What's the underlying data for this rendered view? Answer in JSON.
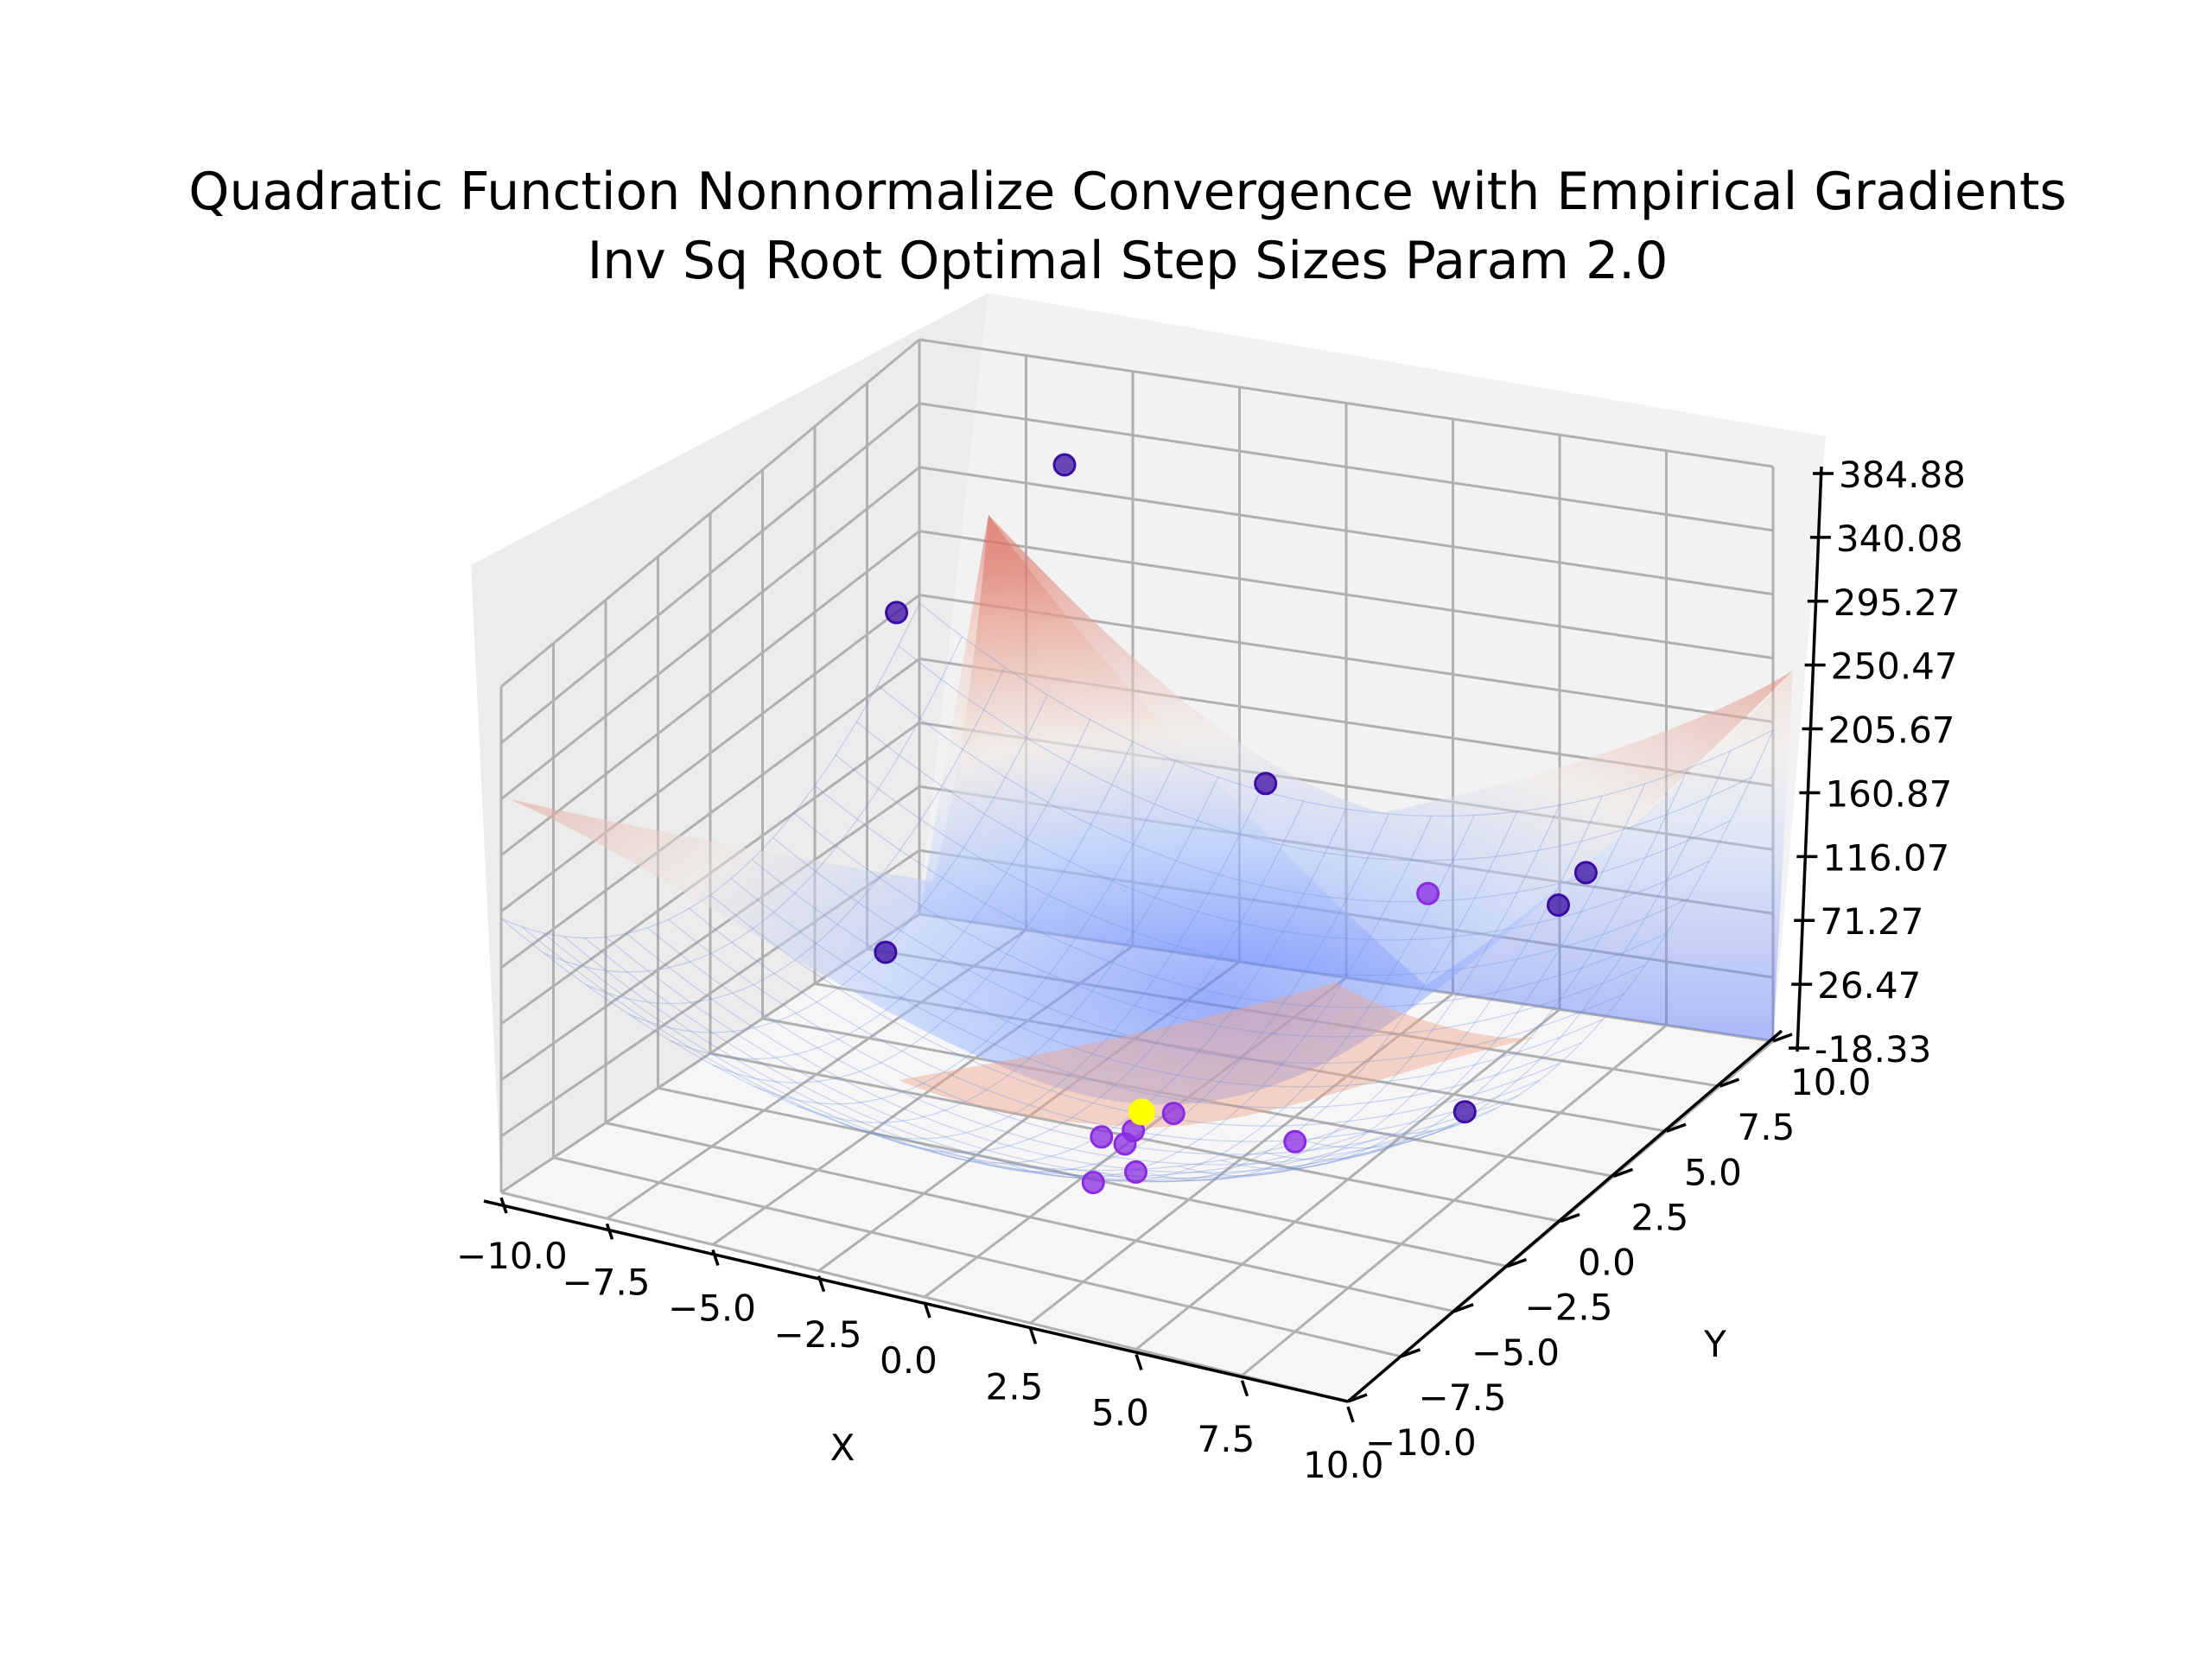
{
  "chart_data": {
    "type": "scatter",
    "subtype": "3d-surface-with-scatter",
    "title": "Quadratic Function Nonnormalize Convergence with Empirical Gradients",
    "subtitle": "Inv Sq Root Optimal Step Sizes Param 2.0",
    "xlabel": "X",
    "ylabel": "Y",
    "zlabel": "",
    "xlim": [
      -10.0,
      10.0
    ],
    "ylim": [
      -10.0,
      10.0
    ],
    "zlim": [
      -18.33,
      384.88
    ],
    "x_ticks": [
      "−10.0",
      "−7.5",
      "−5.0",
      "−2.5",
      "0.0",
      "2.5",
      "5.0",
      "7.5",
      "10.0"
    ],
    "y_ticks": [
      "−10.0",
      "−7.5",
      "−5.0",
      "−2.5",
      "0.0",
      "2.5",
      "5.0",
      "7.5",
      "10.0"
    ],
    "z_ticks": [
      "-18.33",
      "26.47",
      "71.27",
      "116.07",
      "160.87",
      "205.67",
      "250.47",
      "295.27",
      "340.08",
      "384.88"
    ],
    "grid": true,
    "surface": {
      "function": "x^2 + y^2",
      "colormap": "coolwarm",
      "alpha": 0.5
    },
    "colors": {
      "early_points": "#3a0ca3",
      "mid_points": "#8a2be2",
      "final_point": "#ffff00"
    },
    "points": [
      {
        "x": -9.8,
        "y": 8.5,
        "z": 211
      },
      {
        "x": -6.5,
        "y": 9.8,
        "z": 315
      },
      {
        "x": -3.8,
        "y": -4.2,
        "z": 148
      },
      {
        "x": -1.0,
        "y": 8.2,
        "z": 135
      },
      {
        "x": 9.8,
        "y": 0.3,
        "z": 212
      },
      {
        "x": 9.5,
        "y": -3.5,
        "z": 110
      },
      {
        "x": 8.5,
        "y": 4.2,
        "z": 172
      },
      {
        "x": 3.5,
        "y": 6.8,
        "z": 96
      },
      {
        "x": 4.5,
        "y": -1.5,
        "z": 26
      },
      {
        "x": 1.5,
        "y": -3.0,
        "z": 2
      },
      {
        "x": 0.5,
        "y": -1.5,
        "z": -2
      },
      {
        "x": 0.2,
        "y": -0.5,
        "z": -6
      },
      {
        "x": -0.3,
        "y": -1.0,
        "z": -8
      },
      {
        "x": 0.6,
        "y": 0.6,
        "z": -4
      },
      {
        "x": 0.4,
        "y": -2.8,
        "z": -16
      },
      {
        "x": 0.1,
        "y": 0.1,
        "z": 0
      }
    ]
  }
}
